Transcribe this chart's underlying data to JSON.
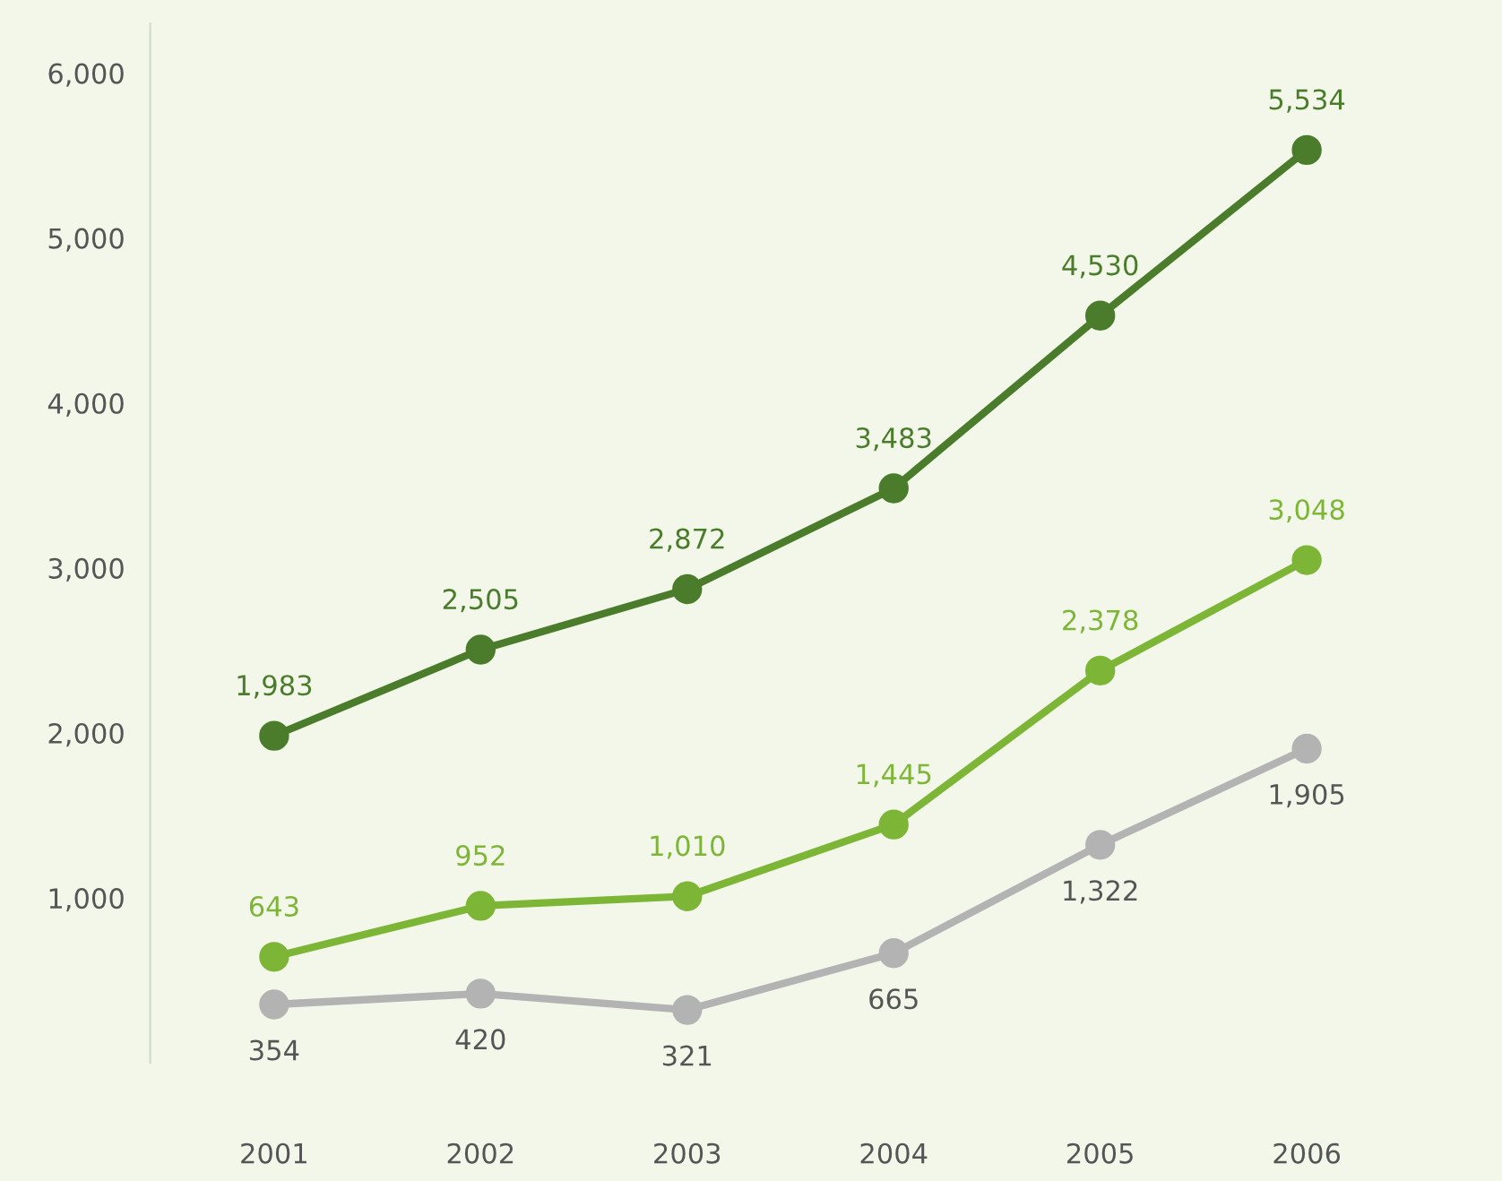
{
  "chart_data": {
    "type": "line",
    "categories": [
      "2001",
      "2002",
      "2003",
      "2004",
      "2005",
      "2006"
    ],
    "series": [
      {
        "color": "#4a7c2b",
        "values": [
          1983,
          2505,
          2872,
          3483,
          4530,
          5534
        ],
        "value_labels": [
          "1,983",
          "2,505",
          "2,872",
          "3,483",
          "4,530",
          "5,534"
        ]
      },
      {
        "color": "#7db536",
        "values": [
          643,
          952,
          1010,
          1445,
          2378,
          3048
        ],
        "value_labels": [
          "643",
          "952",
          "1,010",
          "1,445",
          "2,378",
          "3,048"
        ]
      },
      {
        "color": "#b3b3b3",
        "values": [
          354,
          420,
          321,
          665,
          1322,
          1905
        ],
        "value_labels": [
          "354",
          "420",
          "321",
          "665",
          "1,322",
          "1,905"
        ]
      }
    ],
    "ylim": [
      0,
      6300
    ],
    "yticks": [
      {
        "value": 1000,
        "label": "1,000"
      },
      {
        "value": 2000,
        "label": "2,000"
      },
      {
        "value": 3000,
        "label": "3,000"
      },
      {
        "value": 4000,
        "label": "4,000"
      },
      {
        "value": 5000,
        "label": "5,000"
      },
      {
        "value": 6000,
        "label": "6,000"
      }
    ],
    "marker": "circle",
    "line_style": "solid",
    "grid": false,
    "legend": false
  }
}
